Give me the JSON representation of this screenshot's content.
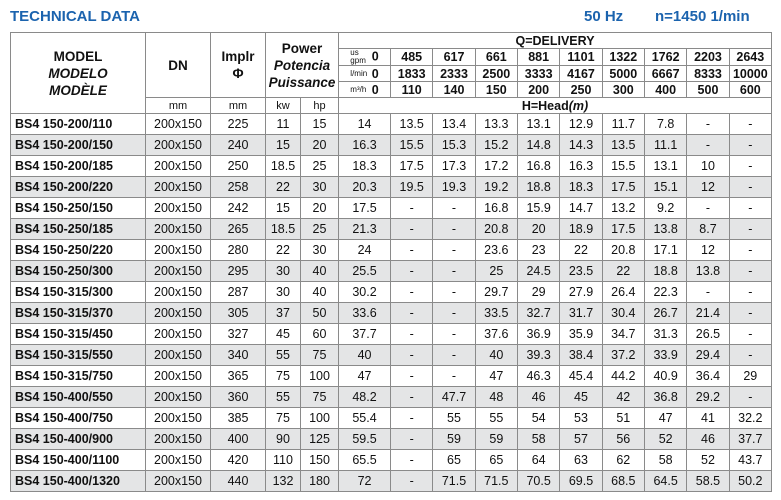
{
  "header": {
    "title": "TECHNICAL DATA",
    "frequency": "50 Hz",
    "speed": "n=1450 1/min"
  },
  "columns": {
    "model": [
      "MODEL",
      "MODELO",
      "MODÈLE"
    ],
    "dn": "DN",
    "impeller": [
      "Implr",
      "Φ"
    ],
    "power": [
      "Power",
      "Potencia",
      "Puissance"
    ],
    "units": [
      "mm",
      "mm",
      "kw",
      "hp"
    ],
    "delivery": "Q=DELIVERY",
    "head": [
      "H=Head",
      "(m)"
    ]
  },
  "flow": [
    {
      "unit": "us gpm",
      "values": [
        0,
        485,
        617,
        661,
        881,
        1101,
        1322,
        1762,
        2203,
        2643
      ]
    },
    {
      "unit": "l/min",
      "values": [
        0,
        1833,
        2333,
        2500,
        3333,
        4167,
        5000,
        6667,
        8333,
        10000
      ]
    },
    {
      "unit": "m³/h",
      "values": [
        0,
        110,
        140,
        150,
        200,
        250,
        300,
        400,
        500,
        600
      ]
    }
  ],
  "rows": [
    [
      "BS4 150-200/110",
      "200x150",
      225,
      11,
      15,
      14,
      13.5,
      13.4,
      13.3,
      13.1,
      12.9,
      11.7,
      7.8,
      "-",
      "-"
    ],
    [
      "BS4 150-200/150",
      "200x150",
      240,
      15,
      20,
      16.3,
      15.5,
      15.3,
      15.2,
      14.8,
      14.3,
      13.5,
      11.1,
      "-",
      "-"
    ],
    [
      "BS4 150-200/185",
      "200x150",
      250,
      18.5,
      25,
      18.3,
      17.5,
      17.3,
      17.2,
      16.8,
      16.3,
      15.5,
      13.1,
      10,
      "-"
    ],
    [
      "BS4 150-200/220",
      "200x150",
      258,
      22,
      30,
      20.3,
      19.5,
      19.3,
      19.2,
      18.8,
      18.3,
      17.5,
      15.1,
      12,
      "-"
    ],
    [
      "BS4 150-250/150",
      "200x150",
      242,
      15,
      20,
      17.5,
      "-",
      "-",
      16.8,
      15.9,
      14.7,
      13.2,
      9.2,
      "-",
      "-"
    ],
    [
      "BS4 150-250/185",
      "200x150",
      265,
      18.5,
      25,
      21.3,
      "-",
      "-",
      20.8,
      20,
      18.9,
      17.5,
      13.8,
      8.7,
      "-"
    ],
    [
      "BS4 150-250/220",
      "200x150",
      280,
      22,
      30,
      24,
      "-",
      "-",
      23.6,
      23,
      22,
      20.8,
      17.1,
      12,
      "-"
    ],
    [
      "BS4 150-250/300",
      "200x150",
      295,
      30,
      40,
      25.5,
      "-",
      "-",
      25,
      24.5,
      23.5,
      22,
      18.8,
      13.8,
      "-"
    ],
    [
      "BS4 150-315/300",
      "200x150",
      287,
      30,
      40,
      30.2,
      "-",
      "-",
      29.7,
      29,
      27.9,
      26.4,
      22.3,
      "-",
      "-"
    ],
    [
      "BS4 150-315/370",
      "200x150",
      305,
      37,
      50,
      33.6,
      "-",
      "-",
      33.5,
      32.7,
      31.7,
      30.4,
      26.7,
      21.4,
      "-"
    ],
    [
      "BS4 150-315/450",
      "200x150",
      327,
      45,
      60,
      37.7,
      "-",
      "-",
      37.6,
      36.9,
      35.9,
      34.7,
      31.3,
      26.5,
      "-"
    ],
    [
      "BS4 150-315/550",
      "200x150",
      340,
      55,
      75,
      40,
      "-",
      "-",
      40,
      39.3,
      38.4,
      37.2,
      33.9,
      29.4,
      "-"
    ],
    [
      "BS4 150-315/750",
      "200x150",
      365,
      75,
      100,
      47,
      "-",
      "-",
      47,
      46.3,
      45.4,
      44.2,
      40.9,
      36.4,
      29
    ],
    [
      "BS4 150-400/550",
      "200x150",
      360,
      55,
      75,
      48.2,
      "-",
      47.7,
      48,
      46,
      45,
      42,
      36.8,
      29.2,
      "-"
    ],
    [
      "BS4 150-400/750",
      "200x150",
      385,
      75,
      100,
      55.4,
      "-",
      55,
      55,
      54,
      53,
      51,
      47,
      41,
      32.2
    ],
    [
      "BS4 150-400/900",
      "200x150",
      400,
      90,
      125,
      59.5,
      "-",
      59,
      59,
      58,
      57,
      56,
      52,
      46,
      37.7
    ],
    [
      "BS4 150-400/1100",
      "200x150",
      420,
      110,
      150,
      65.5,
      "-",
      65,
      65,
      64,
      63,
      62,
      58,
      52,
      43.7
    ],
    [
      "BS4 150-400/1320",
      "200x150",
      440,
      132,
      180,
      72,
      "-",
      71.5,
      71.5,
      70.5,
      69.5,
      68.5,
      64.5,
      58.5,
      50.2
    ]
  ]
}
